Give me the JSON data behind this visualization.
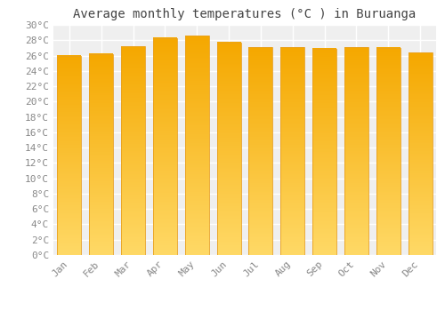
{
  "title": "Average monthly temperatures (°C ) in Buruanga",
  "months": [
    "Jan",
    "Feb",
    "Mar",
    "Apr",
    "May",
    "Jun",
    "Jul",
    "Aug",
    "Sep",
    "Oct",
    "Nov",
    "Dec"
  ],
  "values": [
    26.0,
    26.2,
    27.2,
    28.3,
    28.6,
    27.7,
    27.1,
    27.1,
    26.9,
    27.1,
    27.0,
    26.4
  ],
  "bar_color_top": "#F5A800",
  "bar_color_bottom": "#FFD966",
  "bar_edge_color": "#E8A020",
  "background_color": "#FFFFFF",
  "plot_bg_color": "#EFEFEF",
  "grid_color": "#FFFFFF",
  "ylim": [
    0,
    30
  ],
  "yticks": [
    0,
    2,
    4,
    6,
    8,
    10,
    12,
    14,
    16,
    18,
    20,
    22,
    24,
    26,
    28,
    30
  ],
  "title_fontsize": 10,
  "tick_fontsize": 8,
  "tick_color": "#888888",
  "title_color": "#444444",
  "font_family": "monospace",
  "bar_width": 0.75
}
